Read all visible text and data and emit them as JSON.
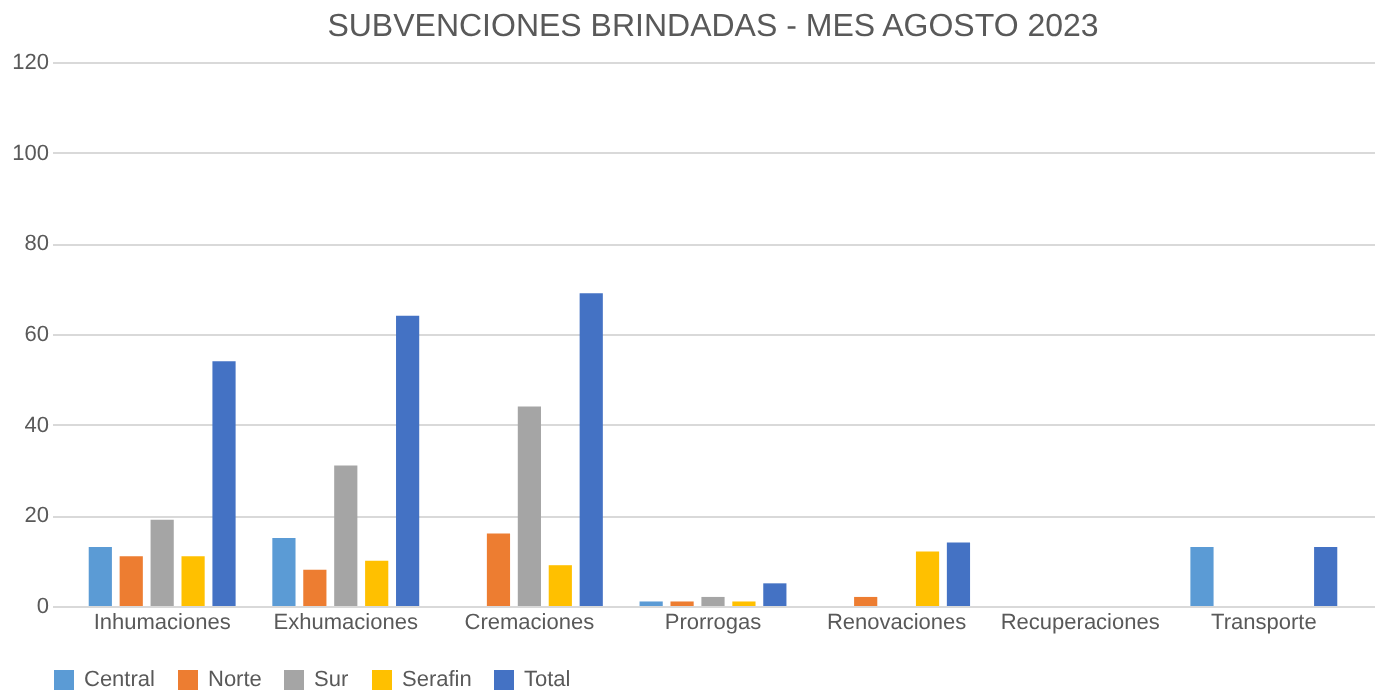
{
  "chart_data": {
    "type": "bar",
    "title": "SUBVENCIONES BRINDADAS - MES AGOSTO 2023",
    "categories": [
      "Inhumaciones",
      "Exhumaciones",
      "Cremaciones",
      "Prorrogas",
      "Renovaciones",
      "Recuperaciones",
      "Transporte"
    ],
    "series": [
      {
        "name": "Central",
        "color": "#5b9bd5",
        "values": [
          13,
          15,
          0,
          1,
          0,
          0,
          13
        ]
      },
      {
        "name": "Norte",
        "color": "#ed7d31",
        "values": [
          11,
          8,
          16,
          1,
          2,
          0,
          0
        ]
      },
      {
        "name": "Sur",
        "color": "#a5a5a5",
        "values": [
          19,
          31,
          44,
          2,
          0,
          0,
          0
        ]
      },
      {
        "name": "Serafin",
        "color": "#ffc000",
        "values": [
          11,
          10,
          9,
          1,
          12,
          0,
          0
        ]
      },
      {
        "name": "Total",
        "color": "#4472c4",
        "values": [
          54,
          64,
          69,
          5,
          14,
          0,
          13
        ]
      }
    ],
    "ylim": [
      0,
      120
    ],
    "yticks": [
      0,
      20,
      40,
      60,
      80,
      100,
      120
    ],
    "grid": "y",
    "legend": "bottom"
  }
}
